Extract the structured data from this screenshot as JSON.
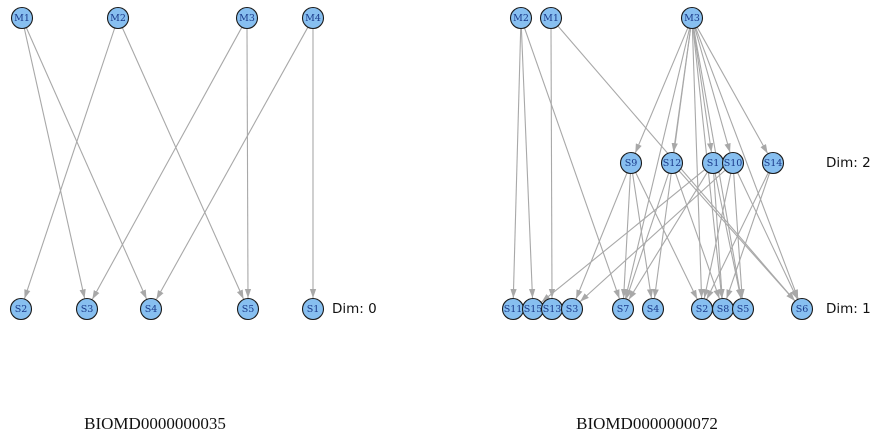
{
  "graphs": [
    {
      "caption": "BIOMD0000000035",
      "dim_labels": [
        "Dim: 0"
      ],
      "nodes": [
        {
          "id": "M1",
          "label": "M1"
        },
        {
          "id": "M2",
          "label": "M2"
        },
        {
          "id": "M3",
          "label": "M3"
        },
        {
          "id": "M4",
          "label": "M4"
        },
        {
          "id": "S2",
          "label": "S2"
        },
        {
          "id": "S3",
          "label": "S3"
        },
        {
          "id": "S4",
          "label": "S4"
        },
        {
          "id": "S5",
          "label": "S5"
        },
        {
          "id": "S1",
          "label": "S1"
        }
      ],
      "edges": [
        [
          "M1",
          "S3"
        ],
        [
          "M1",
          "S4"
        ],
        [
          "M2",
          "S2"
        ],
        [
          "M2",
          "S5"
        ],
        [
          "M3",
          "S3"
        ],
        [
          "M3",
          "S5"
        ],
        [
          "M4",
          "S4"
        ],
        [
          "M4",
          "S1"
        ]
      ]
    },
    {
      "caption": "BIOMD0000000072",
      "dim_labels": [
        "Dim: 2",
        "Dim: 1"
      ],
      "nodes": [
        {
          "id": "M2",
          "label": "M2"
        },
        {
          "id": "M1",
          "label": "M1"
        },
        {
          "id": "M3",
          "label": "M3"
        },
        {
          "id": "S9",
          "label": "S9"
        },
        {
          "id": "S12",
          "label": "S12"
        },
        {
          "id": "S1",
          "label": "S1"
        },
        {
          "id": "S10",
          "label": "S10"
        },
        {
          "id": "S14",
          "label": "S14"
        },
        {
          "id": "S11",
          "label": "S11"
        },
        {
          "id": "S15",
          "label": "S15"
        },
        {
          "id": "S13",
          "label": "S13"
        },
        {
          "id": "S3",
          "label": "S3"
        },
        {
          "id": "S7",
          "label": "S7"
        },
        {
          "id": "S4",
          "label": "S4"
        },
        {
          "id": "S2",
          "label": "S2"
        },
        {
          "id": "S8",
          "label": "S8"
        },
        {
          "id": "S5",
          "label": "S5"
        },
        {
          "id": "S6",
          "label": "S6"
        }
      ],
      "edges": [
        [
          "M2",
          "S11"
        ],
        [
          "M2",
          "S15"
        ],
        [
          "M2",
          "S7"
        ],
        [
          "M1",
          "S13"
        ],
        [
          "M1",
          "S6"
        ],
        [
          "M3",
          "S9"
        ],
        [
          "M3",
          "S12"
        ],
        [
          "M3",
          "S1"
        ],
        [
          "M3",
          "S10"
        ],
        [
          "M3",
          "S14"
        ],
        [
          "M3",
          "S7"
        ],
        [
          "M3",
          "S4"
        ],
        [
          "M3",
          "S2"
        ],
        [
          "M3",
          "S8"
        ],
        [
          "M3",
          "S5"
        ],
        [
          "M3",
          "S6"
        ],
        [
          "S9",
          "S3"
        ],
        [
          "S9",
          "S7"
        ],
        [
          "S9",
          "S4"
        ],
        [
          "S9",
          "S2"
        ],
        [
          "S12",
          "S7"
        ],
        [
          "S12",
          "S8"
        ],
        [
          "S12",
          "S6"
        ],
        [
          "S1",
          "S15"
        ],
        [
          "S1",
          "S7"
        ],
        [
          "S1",
          "S8"
        ],
        [
          "S1",
          "S5"
        ],
        [
          "S10",
          "S3"
        ],
        [
          "S10",
          "S2"
        ],
        [
          "S10",
          "S5"
        ],
        [
          "S10",
          "S6"
        ],
        [
          "S14",
          "S2"
        ],
        [
          "S14",
          "S8"
        ]
      ]
    }
  ]
}
